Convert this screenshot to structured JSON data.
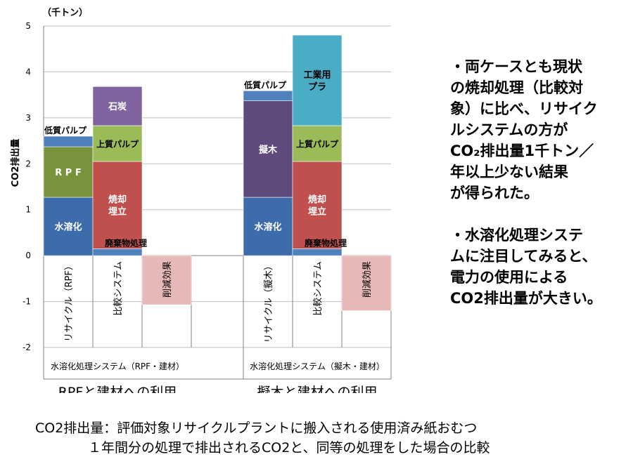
{
  "chart_data": {
    "type": "bar",
    "stacked": true,
    "unit_label": "（千トン）",
    "ylabel": "CO2排出量",
    "ylim": [
      -2,
      5
    ],
    "yticks": [
      -2,
      -1,
      0,
      1,
      2,
      3,
      4,
      5
    ],
    "grid": true,
    "groups": [
      {
        "title": "RPFと建材への利用",
        "label": "水溶化処理システム（RPF・建材）",
        "bars": [
          {
            "category": "リサイクル（RPF）",
            "segments": [
              {
                "label": "水溶化",
                "value": 1.27,
                "color": "#3d6bab"
              },
              {
                "label": "RPF",
                "value": 1.1,
                "color": "#77933c"
              },
              {
                "label": "低質パルプ",
                "value": 0.23,
                "color": "#4f81bd"
              }
            ]
          },
          {
            "category": "比較システム",
            "segments": [
              {
                "label": "廃棄物処理",
                "value": 0.15,
                "color": "#4f81bd"
              },
              {
                "label": "焼却埋立",
                "value": 1.9,
                "color": "#c0504d"
              },
              {
                "label": "上質パルプ",
                "value": 0.78,
                "color": "#9bbb59"
              },
              {
                "label": "石炭",
                "value": 0.85,
                "color": "#8064a2"
              }
            ]
          },
          {
            "category": "削減効果",
            "segments": [
              {
                "label": "",
                "value": -1.07,
                "color": "#e6b9b8"
              }
            ]
          }
        ]
      },
      {
        "title": "擬木と建材への利用",
        "label": "水溶化処理システム（擬木・建材）",
        "bars": [
          {
            "category": "リサイクル（擬木）",
            "segments": [
              {
                "label": "水溶化",
                "value": 1.27,
                "color": "#3d6bab"
              },
              {
                "label": "擬木",
                "value": 2.1,
                "color": "#604a7b"
              },
              {
                "label": "低質パルプ",
                "value": 0.22,
                "color": "#4f81bd"
              }
            ]
          },
          {
            "category": "比較システム",
            "segments": [
              {
                "label": "廃棄物処理",
                "value": 0.15,
                "color": "#4f81bd"
              },
              {
                "label": "焼却埋立",
                "value": 1.9,
                "color": "#c0504d"
              },
              {
                "label": "上質パルプ",
                "value": 0.78,
                "color": "#9bbb59"
              },
              {
                "label": "工業用プラ",
                "value": 1.97,
                "color": "#4bacc6"
              }
            ]
          },
          {
            "category": "削減効果",
            "segments": [
              {
                "label": "",
                "value": -1.2,
                "color": "#e6b9b8"
              }
            ]
          }
        ]
      }
    ]
  },
  "notes": {
    "text1": "・両ケースとも現状\nの焼却処理（比較対\n象）に比べ、リサイク\nルシステムの方が\nCO₂排出量1千トン／\n年以上少ない結果\nが得られた。",
    "text2": "・水溶化処理システ\nムに注目してみると、\n電力の使用による\nCO2排出量が大きい。"
  },
  "footer": {
    "line1": "CO2排出量：評価対象リサイクルプラントに搬入される使用済み紙おむつ",
    "line2": "１年間分の処理で排出されるCO2と、同等の処理をした場合の比較"
  }
}
